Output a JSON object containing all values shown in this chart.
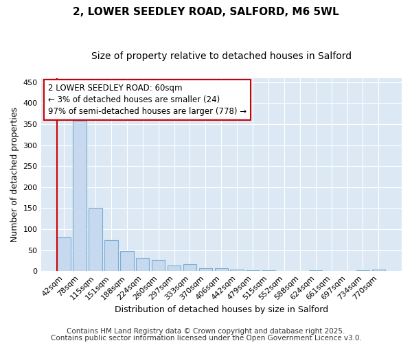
{
  "title1": "2, LOWER SEEDLEY ROAD, SALFORD, M6 5WL",
  "title2": "Size of property relative to detached houses in Salford",
  "xlabel": "Distribution of detached houses by size in Salford",
  "ylabel": "Number of detached properties",
  "categories": [
    "42sqm",
    "78sqm",
    "115sqm",
    "151sqm",
    "188sqm",
    "224sqm",
    "260sqm",
    "297sqm",
    "333sqm",
    "370sqm",
    "406sqm",
    "442sqm",
    "479sqm",
    "515sqm",
    "552sqm",
    "588sqm",
    "624sqm",
    "661sqm",
    "697sqm",
    "734sqm",
    "770sqm"
  ],
  "values": [
    80,
    358,
    150,
    73,
    48,
    32,
    26,
    13,
    16,
    6,
    7,
    4,
    1,
    1,
    0,
    0,
    1,
    0,
    0,
    1,
    4
  ],
  "bar_color": "#c6d9ee",
  "bar_edge_color": "#7aadd4",
  "highlight_line_color": "#cc0000",
  "annotation_line1": "2 LOWER SEEDLEY ROAD: 60sqm",
  "annotation_line2": "← 3% of detached houses are smaller (24)",
  "annotation_line3": "97% of semi-detached houses are larger (778) →",
  "annotation_box_color": "#ffffff",
  "annotation_box_edge_color": "#cc0000",
  "ylim": [
    0,
    460
  ],
  "yticks": [
    0,
    50,
    100,
    150,
    200,
    250,
    300,
    350,
    400,
    450
  ],
  "plot_bg_color": "#dce9f5",
  "fig_bg_color": "#ffffff",
  "grid_color": "#ffffff",
  "footer1": "Contains HM Land Registry data © Crown copyright and database right 2025.",
  "footer2": "Contains public sector information licensed under the Open Government Licence v3.0.",
  "title1_fontsize": 11,
  "title2_fontsize": 10,
  "xlabel_fontsize": 9,
  "ylabel_fontsize": 9,
  "tick_fontsize": 8,
  "annotation_fontsize": 8.5,
  "footer_fontsize": 7.5
}
